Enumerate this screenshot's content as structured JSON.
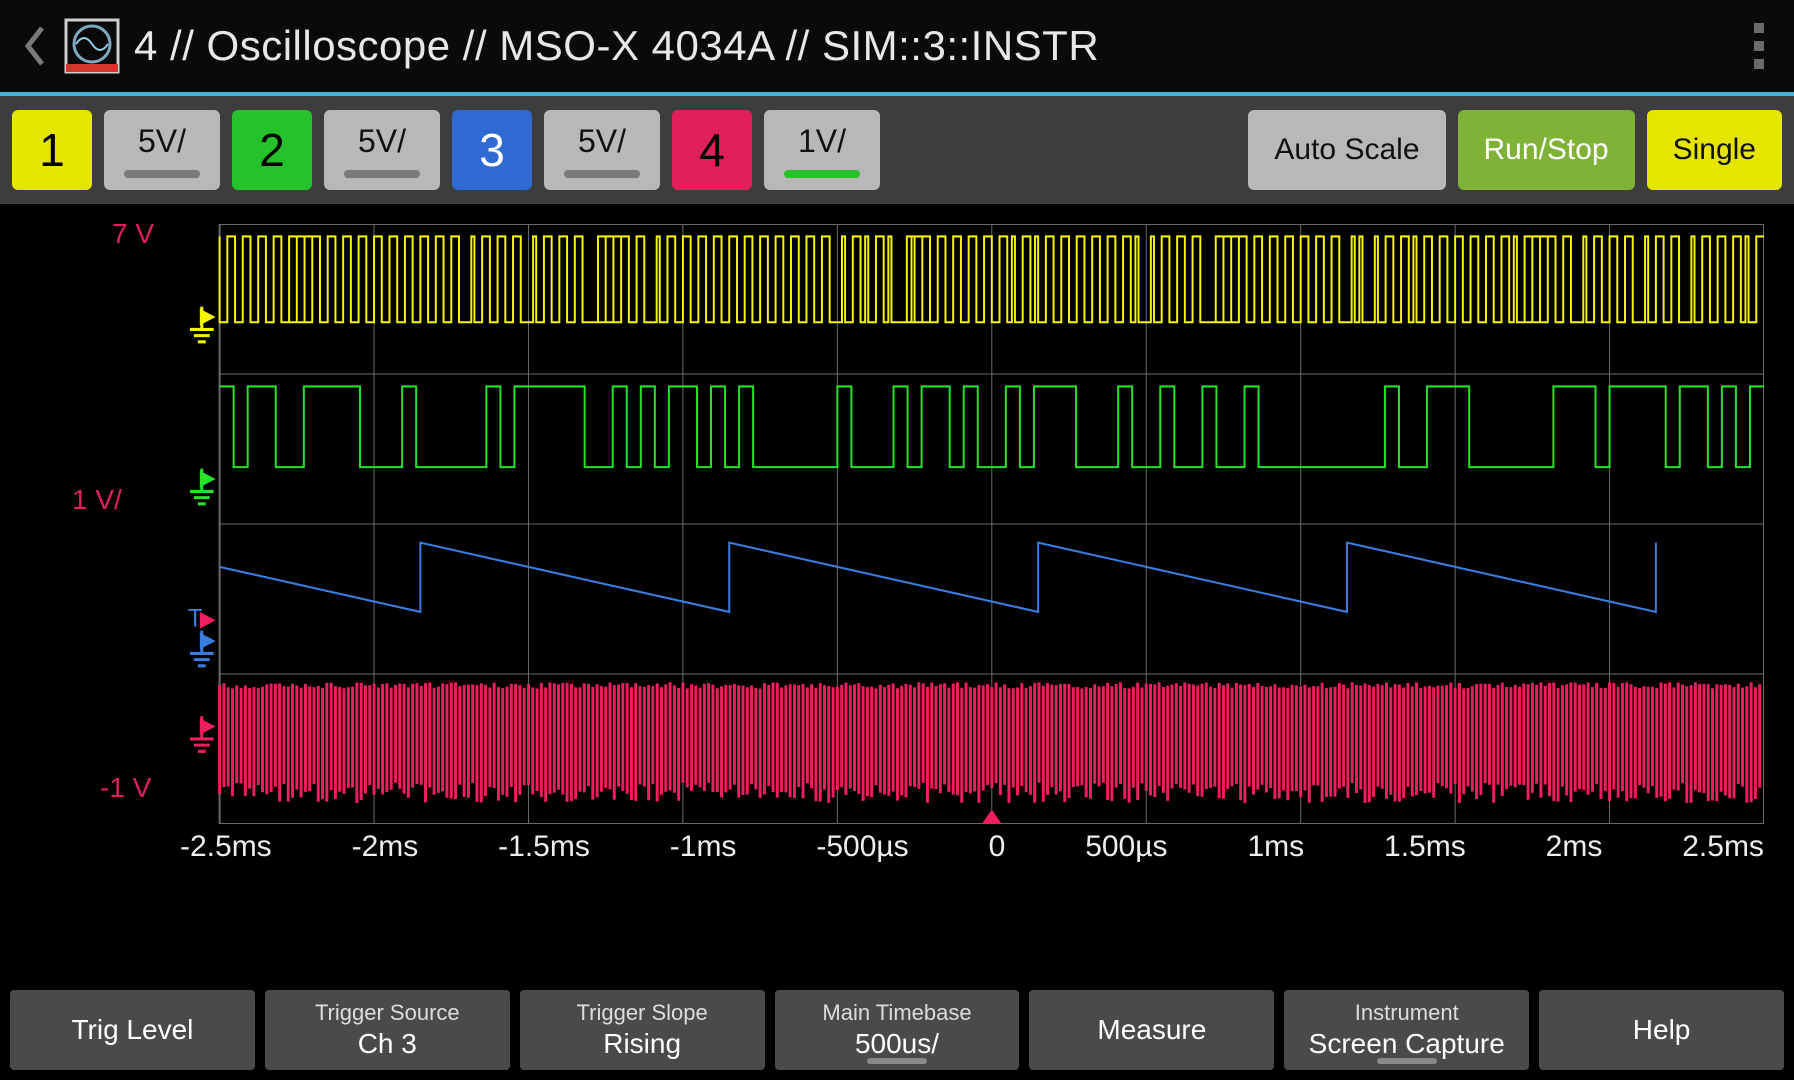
{
  "header": {
    "title": "4 // Oscilloscope // MSO-X 4034A // SIM::3::INSTR",
    "accent_color": "#3fb6d6",
    "icon_frame_color": "#e8e8e8",
    "icon_accent": "#d6342c"
  },
  "channels": [
    {
      "num": "1",
      "color": "#e5e500",
      "scale": "5V/",
      "active_bar_color": "#7a7a7a"
    },
    {
      "num": "2",
      "color": "#26c22b",
      "scale": "5V/",
      "active_bar_color": "#7a7a7a"
    },
    {
      "num": "3",
      "color": "#2e6ad1",
      "scale": "5V/",
      "active_bar_color": "#7a7a7a"
    },
    {
      "num": "4",
      "color": "#e0205a",
      "scale": "1V/",
      "active_bar_color": "#26c22b"
    }
  ],
  "top_buttons": {
    "autoscale": {
      "label": "Auto Scale",
      "bg": "#b8b8b8",
      "fg": "#111"
    },
    "runstop": {
      "label": "Run/Stop",
      "bg": "#7fb236",
      "fg": "#fff"
    },
    "single": {
      "label": "Single",
      "bg": "#e5e500",
      "fg": "#111"
    }
  },
  "plot": {
    "bg": "#000000",
    "grid_color": "#6b6b6b",
    "grid_cols": 10,
    "grid_rows": 4,
    "y_top_label": {
      "text": "7 V",
      "color": "#e0205a"
    },
    "y_mid_label": {
      "text": "1 V/",
      "color": "#e0205a"
    },
    "y_bot_label": {
      "text": "-1 V",
      "color": "#e0205a"
    },
    "x_ticks": [
      "-2.5ms",
      "-2ms",
      "-1.5ms",
      "-1ms",
      "-500µs",
      "0",
      "500µs",
      "1ms",
      "1.5ms",
      "2ms",
      "2.5ms"
    ],
    "traces": {
      "ch1": {
        "color": "#f5f500",
        "row": 0,
        "type": "digital_burst",
        "density": 200,
        "drop_prob": 0.15,
        "high": 12,
        "low": 95
      },
      "ch2": {
        "color": "#26e22b",
        "row": 1,
        "type": "digital_random",
        "density": 110,
        "high": 12,
        "low": 90
      },
      "ch3": {
        "color": "#3b7de0",
        "row": 2,
        "type": "sawtooth",
        "periods": 5,
        "high": 18,
        "low": 85
      },
      "ch4": {
        "color": "#ef1f5f",
        "row": 3,
        "type": "dense_noise",
        "density": 360,
        "high": 8,
        "low": 105
      }
    },
    "trigger_marker_color": "#ef1f5f",
    "trigger_letter_color": "#3b7de0"
  },
  "bottom": [
    {
      "id": "trig-level",
      "title": "",
      "value": "Trig Level"
    },
    {
      "id": "trig-source",
      "title": "Trigger Source",
      "value": "Ch 3"
    },
    {
      "id": "trig-slope",
      "title": "Trigger Slope",
      "value": "Rising"
    },
    {
      "id": "timebase",
      "title": "Main Timebase",
      "value": "500us/",
      "bar": true
    },
    {
      "id": "measure",
      "title": "",
      "value": "Measure"
    },
    {
      "id": "screencap",
      "title": "Instrument",
      "value": "Screen Capture",
      "bar": true
    },
    {
      "id": "help",
      "title": "",
      "value": "Help"
    }
  ]
}
